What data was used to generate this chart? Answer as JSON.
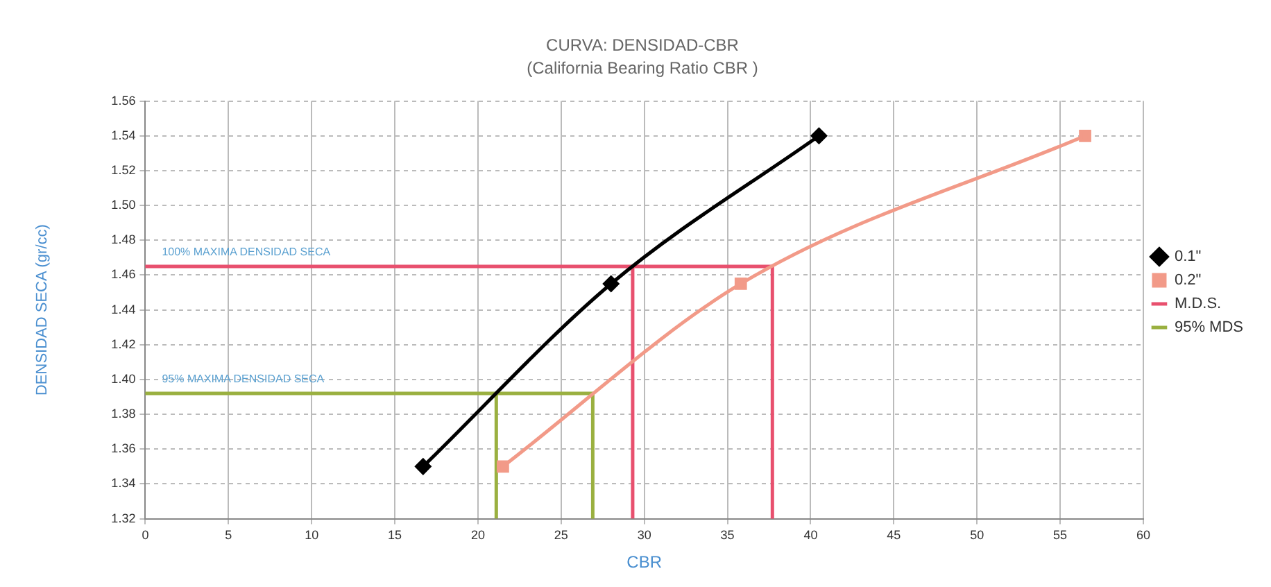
{
  "chart_data": {
    "type": "line",
    "title": "CURVA: DENSIDAD-CBR",
    "subtitle": "(California Bearing Ratio CBR )",
    "xlabel": "CBR",
    "ylabel": "DENSIDAD SECA (gr/cc)",
    "xlim": [
      0,
      60
    ],
    "xticks": [
      0,
      5,
      10,
      15,
      20,
      25,
      30,
      35,
      40,
      45,
      50,
      55,
      60
    ],
    "ylim": [
      1.32,
      1.56
    ],
    "yticks": [
      1.32,
      1.34,
      1.36,
      1.38,
      {
        "value": 1.4,
        "label": "1.40"
      },
      1.42,
      1.44,
      1.46,
      1.48,
      {
        "value": 1.5,
        "label": "1.50"
      },
      1.52,
      1.54,
      1.56
    ],
    "grid": true,
    "legend": "right",
    "line_style": "solid",
    "series": [
      {
        "name": "0.1\"",
        "color": "#000000",
        "marker": "diamond",
        "x": [
          16.7,
          28,
          40.5
        ],
        "values": [
          1.35,
          1.455,
          1.54
        ]
      },
      {
        "name": "0.2\"",
        "color": "#f29a88",
        "marker": "square",
        "x": [
          21.5,
          35.8,
          56.5
        ],
        "values": [
          1.35,
          1.455,
          1.54
        ]
      },
      {
        "name": "M.D.S.",
        "color": "#e8506e",
        "marker": "none",
        "x": [
          29.3,
          29.3,
          0,
          37.7,
          37.7
        ],
        "values": [
          1.32,
          1.465,
          1.465,
          1.465,
          1.32
        ]
      },
      {
        "name": "95% MDS",
        "color": "#9ab040",
        "marker": "none",
        "x": [
          21.1,
          21.1,
          0,
          26.9,
          26.9
        ],
        "values": [
          1.32,
          1.392,
          1.392,
          1.392,
          1.32
        ]
      }
    ],
    "annotations": [
      {
        "text": "100% MAXIMA DENSIDAD SECA",
        "x": 1,
        "y": 1.465
      },
      {
        "text": "95% MAXIMA DENSIDAD SECA",
        "x": 1,
        "y": 1.392
      }
    ]
  }
}
